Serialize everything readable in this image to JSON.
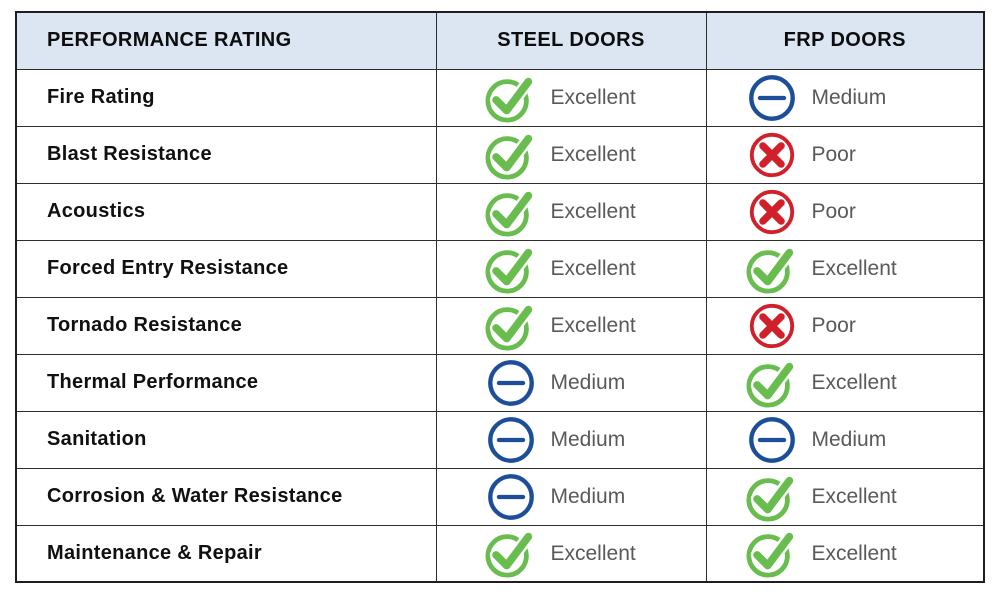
{
  "table": {
    "headers": [
      "PERFORMANCE RATING",
      "STEEL DOORS",
      "FRP DOORS"
    ]
  },
  "ratings": {
    "excellent": {
      "label": "Excellent",
      "icon": "check-circle-icon",
      "color": "#69bd4f"
    },
    "medium": {
      "label": "Medium",
      "icon": "dash-circle-icon",
      "color": "#1d4e9a"
    },
    "poor": {
      "label": "Poor",
      "icon": "x-circle-icon",
      "color": "#d1202a"
    }
  },
  "colors": {
    "header_bg": "#dce6f2",
    "border": "#2d2d2d",
    "rating_text": "#595959",
    "label_text": "#101010",
    "excellent_green": "#69bd4f",
    "medium_blue": "#1d4e9a",
    "poor_red": "#d1202a"
  },
  "chart_data": {
    "type": "table",
    "columns": [
      "PERFORMANCE RATING",
      "STEEL DOORS",
      "FRP DOORS"
    ],
    "rows": [
      [
        "Fire Rating",
        "Excellent",
        "Medium"
      ],
      [
        "Blast Resistance",
        "Excellent",
        "Poor"
      ],
      [
        "Acoustics",
        "Excellent",
        "Poor"
      ],
      [
        "Forced Entry Resistance",
        "Excellent",
        "Excellent"
      ],
      [
        "Tornado Resistance",
        "Excellent",
        "Poor"
      ],
      [
        "Thermal Performance",
        "Medium",
        "Excellent"
      ],
      [
        "Sanitation",
        "Medium",
        "Medium"
      ],
      [
        "Corrosion & Water Resistance",
        "Medium",
        "Excellent"
      ],
      [
        "Maintenance & Repair",
        "Excellent",
        "Excellent"
      ]
    ]
  }
}
